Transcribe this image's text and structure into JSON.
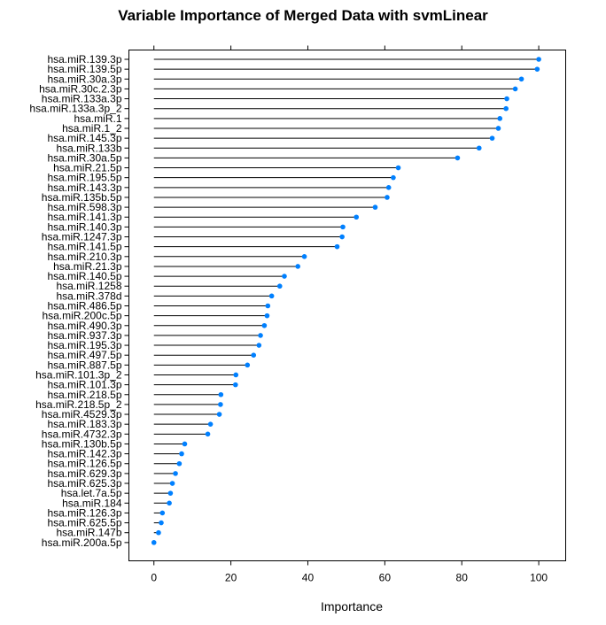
{
  "chart_data": {
    "type": "lollipop",
    "title": "Variable Importance of Merged Data with svmLinear",
    "xlabel": "Importance",
    "ylabel": "",
    "xlim": [
      -6.5,
      107
    ],
    "xticks": [
      0,
      20,
      40,
      60,
      80,
      100
    ],
    "grid": false,
    "point_color": "#0080ff",
    "stem_color": "#000000",
    "categories": [
      "hsa.miR.139.3p",
      "hsa.miR.139.5p",
      "hsa.miR.30a.3p",
      "hsa.miR.30c.2.3p",
      "hsa.miR.133a.3p",
      "hsa.miR.133a.3p_2",
      "hsa.miR.1",
      "hsa.miR.1_2",
      "hsa.miR.145.3p",
      "hsa.miR.133b",
      "hsa.miR.30a.5p",
      "hsa.miR.21.5p",
      "hsa.miR.195.5p",
      "hsa.miR.143.3p",
      "hsa.miR.135b.5p",
      "hsa.miR.598.3p",
      "hsa.miR.141.3p",
      "hsa.miR.140.3p",
      "hsa.miR.1247.3p",
      "hsa.miR.141.5p",
      "hsa.miR.210.3p",
      "hsa.miR.21.3p",
      "hsa.miR.140.5p",
      "hsa.miR.1258",
      "hsa.miR.378d",
      "hsa.miR.486.5p",
      "hsa.miR.200c.5p",
      "hsa.miR.490.3p",
      "hsa.miR.937.3p",
      "hsa.miR.195.3p",
      "hsa.miR.497.5p",
      "hsa.miR.887.5p",
      "hsa.miR.101.3p_2",
      "hsa.miR.101.3p",
      "hsa.miR.218.5p",
      "hsa.miR.218.5p_2",
      "hsa.miR.4529.3p",
      "hsa.miR.183.3p",
      "hsa.miR.4732.3p",
      "hsa.miR.130b.5p",
      "hsa.miR.142.3p",
      "hsa.miR.126.5p",
      "hsa.miR.629.3p",
      "hsa.miR.625.3p",
      "hsa.let.7a.5p",
      "hsa.miR.184",
      "hsa.miR.126.3p",
      "hsa.miR.625.5p",
      "hsa.miR.147b",
      "hsa.miR.200a.5p"
    ],
    "values": [
      100,
      99.6,
      95.5,
      93.9,
      91.7,
      91.5,
      89.9,
      89.5,
      87.9,
      84.5,
      78.9,
      63.5,
      62.2,
      61.0,
      60.6,
      57.5,
      52.6,
      49.1,
      48.9,
      47.6,
      39.1,
      37.4,
      33.9,
      32.7,
      30.6,
      29.6,
      29.4,
      28.7,
      27.7,
      27.3,
      25.9,
      24.3,
      21.3,
      21.2,
      17.4,
      17.3,
      17.0,
      14.7,
      14.0,
      8.0,
      7.2,
      6.6,
      5.6,
      4.8,
      4.3,
      4.0,
      2.2,
      1.9,
      1.2,
      0
    ]
  }
}
